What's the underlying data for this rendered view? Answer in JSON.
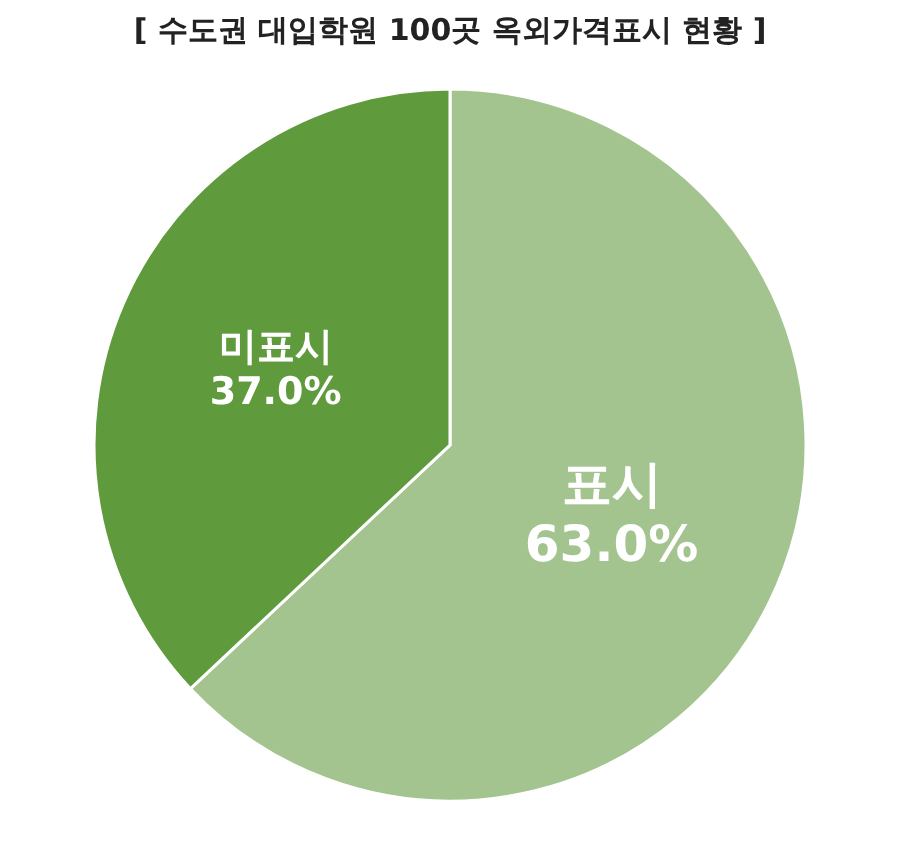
{
  "chart_data": {
    "type": "pie",
    "title": "[ 수도권 대입학원 100곳 옥외가격표시 현황 ]",
    "categories": [
      "표시",
      "미표시"
    ],
    "values": [
      63.0,
      37.0
    ],
    "value_labels": [
      "63.0%",
      "37.0%"
    ],
    "colors": [
      "#a3c48f",
      "#5f9a3d"
    ],
    "legend": false
  }
}
